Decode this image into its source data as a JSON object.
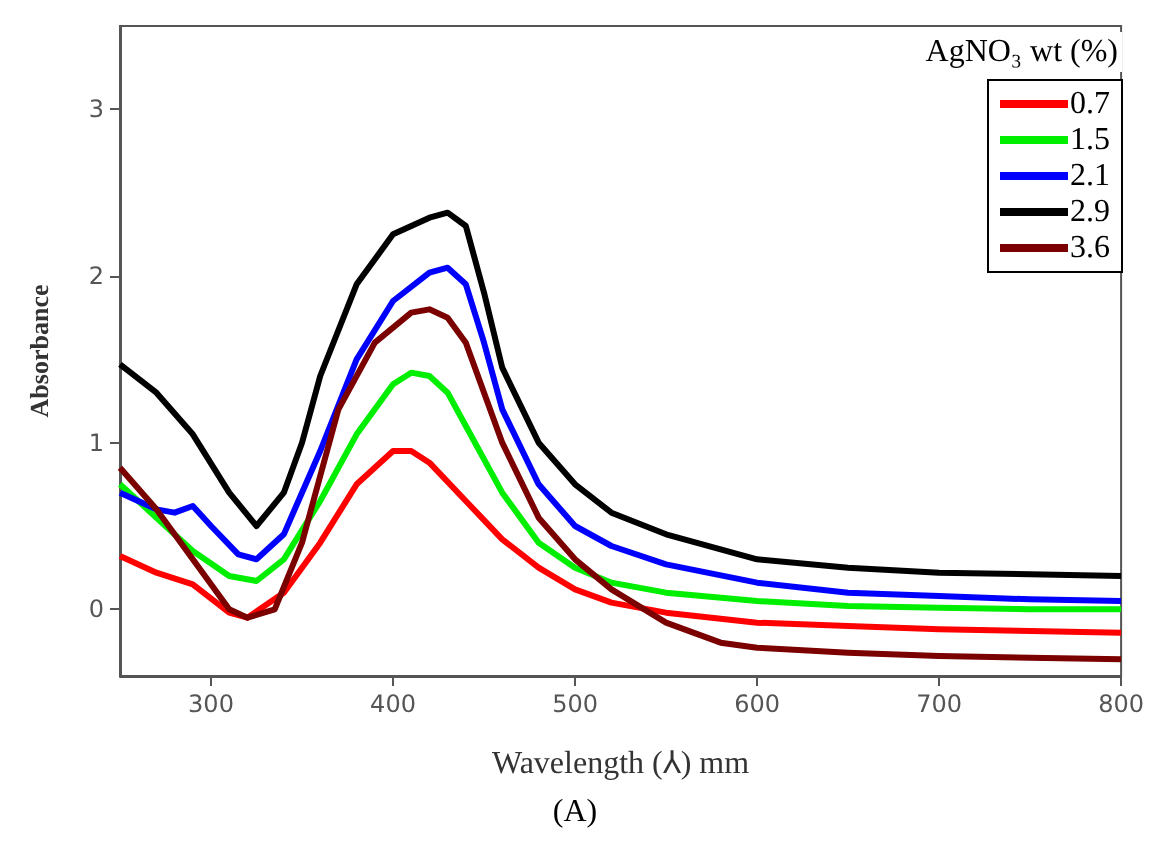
{
  "chart_data": {
    "type": "line",
    "xlabel": "Wavelength (⅄) mm",
    "ylabel": "Absorbance",
    "legend_title": "AgNO₃ wt (%)",
    "annotations": [
      "(A)"
    ],
    "xlim": [
      250,
      800
    ],
    "xticks": [
      300,
      400,
      500,
      600,
      700,
      800
    ],
    "ylim": [
      -0.4,
      3.5
    ],
    "yticks": [
      0,
      1,
      2,
      3
    ],
    "grid": false,
    "legend": "top right",
    "marker": "none",
    "line_style": "solid",
    "series": [
      {
        "name": "0.7",
        "color": "#ff0000",
        "x": [
          250,
          270,
          290,
          310,
          320,
          340,
          360,
          380,
          400,
          410,
          420,
          440,
          460,
          480,
          500,
          520,
          550,
          600,
          650,
          700,
          750,
          800
        ],
        "values": [
          0.32,
          0.22,
          0.15,
          -0.02,
          -0.05,
          0.1,
          0.4,
          0.75,
          0.95,
          0.95,
          0.88,
          0.65,
          0.42,
          0.25,
          0.12,
          0.04,
          -0.02,
          -0.08,
          -0.1,
          -0.12,
          -0.13,
          -0.14
        ]
      },
      {
        "name": "1.5",
        "color": "#00ee00",
        "x": [
          250,
          270,
          290,
          310,
          325,
          340,
          360,
          380,
          400,
          410,
          420,
          430,
          440,
          460,
          480,
          500,
          520,
          550,
          600,
          650,
          700,
          750,
          800
        ],
        "values": [
          0.75,
          0.55,
          0.35,
          0.2,
          0.17,
          0.3,
          0.65,
          1.05,
          1.35,
          1.42,
          1.4,
          1.3,
          1.1,
          0.7,
          0.4,
          0.25,
          0.16,
          0.1,
          0.05,
          0.02,
          0.01,
          0.0,
          0.0
        ]
      },
      {
        "name": "2.1",
        "color": "#0000ff",
        "x": [
          250,
          270,
          280,
          290,
          300,
          315,
          325,
          340,
          360,
          380,
          400,
          420,
          430,
          440,
          450,
          460,
          480,
          500,
          520,
          550,
          600,
          650,
          700,
          750,
          800
        ],
        "values": [
          0.7,
          0.6,
          0.58,
          0.62,
          0.5,
          0.33,
          0.3,
          0.45,
          0.95,
          1.5,
          1.85,
          2.02,
          2.05,
          1.95,
          1.6,
          1.2,
          0.75,
          0.5,
          0.38,
          0.27,
          0.16,
          0.1,
          0.08,
          0.06,
          0.05
        ]
      },
      {
        "name": "2.9",
        "color": "#000000",
        "x": [
          250,
          270,
          290,
          310,
          325,
          340,
          350,
          360,
          380,
          400,
          420,
          430,
          440,
          450,
          460,
          480,
          500,
          520,
          550,
          600,
          650,
          700,
          750,
          800
        ],
        "values": [
          1.47,
          1.3,
          1.05,
          0.7,
          0.5,
          0.7,
          1.0,
          1.4,
          1.95,
          2.25,
          2.35,
          2.38,
          2.3,
          1.9,
          1.45,
          1.0,
          0.75,
          0.58,
          0.45,
          0.3,
          0.25,
          0.22,
          0.21,
          0.2
        ]
      },
      {
        "name": "3.6",
        "color": "#7b0000",
        "x": [
          250,
          270,
          290,
          310,
          320,
          335,
          350,
          370,
          390,
          410,
          420,
          430,
          440,
          460,
          480,
          500,
          520,
          550,
          580,
          600,
          650,
          700,
          750,
          800
        ],
        "values": [
          0.85,
          0.6,
          0.3,
          0.0,
          -0.05,
          0.0,
          0.4,
          1.2,
          1.6,
          1.78,
          1.8,
          1.75,
          1.6,
          1.0,
          0.55,
          0.3,
          0.12,
          -0.08,
          -0.2,
          -0.23,
          -0.26,
          -0.28,
          -0.29,
          -0.3
        ]
      }
    ]
  }
}
